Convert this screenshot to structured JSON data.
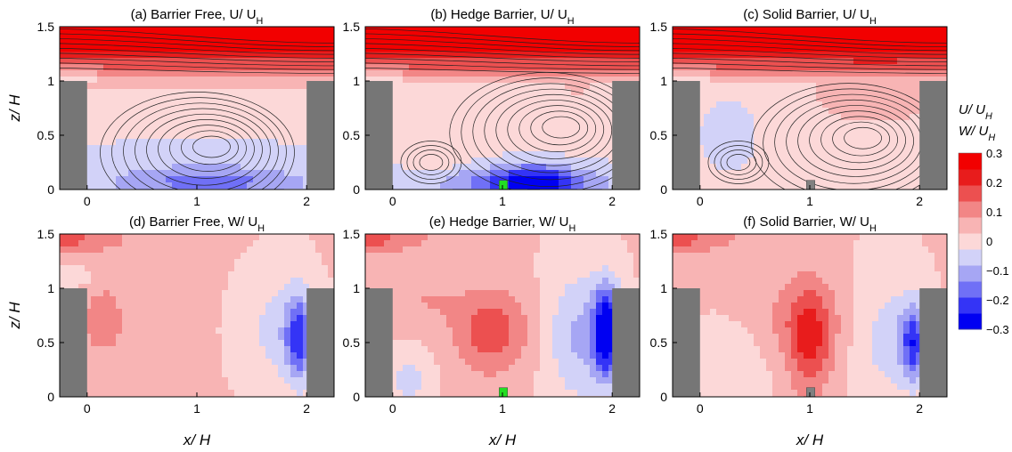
{
  "chart_data": {
    "type": "heatmap",
    "colorbar": {
      "title_line1": "U/ U_H",
      "title_line2": "W/ U_H",
      "ticks": [
        "0.3",
        "0.2",
        "0.1",
        "0",
        "−0.1",
        "−0.2",
        "−0.3"
      ],
      "range": [
        -0.3,
        0.3
      ],
      "colors": [
        "#0000f2",
        "#3434f6",
        "#7070f6",
        "#a6a6f4",
        "#d2d2f8",
        "#fcd8d8",
        "#f8b4b4",
        "#f28686",
        "#ec5050",
        "#e81c1c",
        "#f20000"
      ]
    },
    "xlabel": "x/ H",
    "ylabel": "z/ H",
    "xticks": [
      "0",
      "1",
      "2"
    ],
    "yticks": [
      "0",
      "0.5",
      "1",
      "1.5"
    ],
    "xlim": [
      -0.25,
      2.25
    ],
    "ylim": [
      0,
      1.5
    ],
    "panels": [
      {
        "title": "(a) Barrier Free, U/ U_H",
        "field": "U",
        "barrier": "none",
        "vortex": [
          1.15,
          0.4
        ]
      },
      {
        "title": "(b) Hedge Barrier, U/ U_H",
        "field": "U",
        "barrier": "hedge",
        "vortex": [
          1.55,
          0.58
        ]
      },
      {
        "title": "(c) Solid Barrier, U/ U_H",
        "field": "U",
        "barrier": "solid",
        "vortex": [
          1.5,
          0.48
        ]
      },
      {
        "title": "(d) Barrier Free, W/ U_H",
        "field": "W",
        "barrier": "none"
      },
      {
        "title": "(e) Hedge Barrier, W/ U_H",
        "field": "W",
        "barrier": "hedge"
      },
      {
        "title": "(f) Solid Barrier, W/ U_H",
        "field": "W",
        "barrier": "solid"
      }
    ],
    "buildings": [
      {
        "x": [
          -0.25,
          0
        ],
        "z": [
          0,
          1
        ]
      },
      {
        "x": [
          2,
          2.25
        ],
        "z": [
          0,
          1
        ]
      }
    ],
    "barriers": {
      "hedge": {
        "x": [
          0.97,
          1.03
        ],
        "z": [
          0,
          0.06
        ],
        "color": "#22dd22"
      },
      "solid": {
        "x": [
          0.97,
          1.03
        ],
        "z": [
          0,
          0.06
        ],
        "color": "#808080"
      }
    },
    "building_color": "#767676"
  }
}
